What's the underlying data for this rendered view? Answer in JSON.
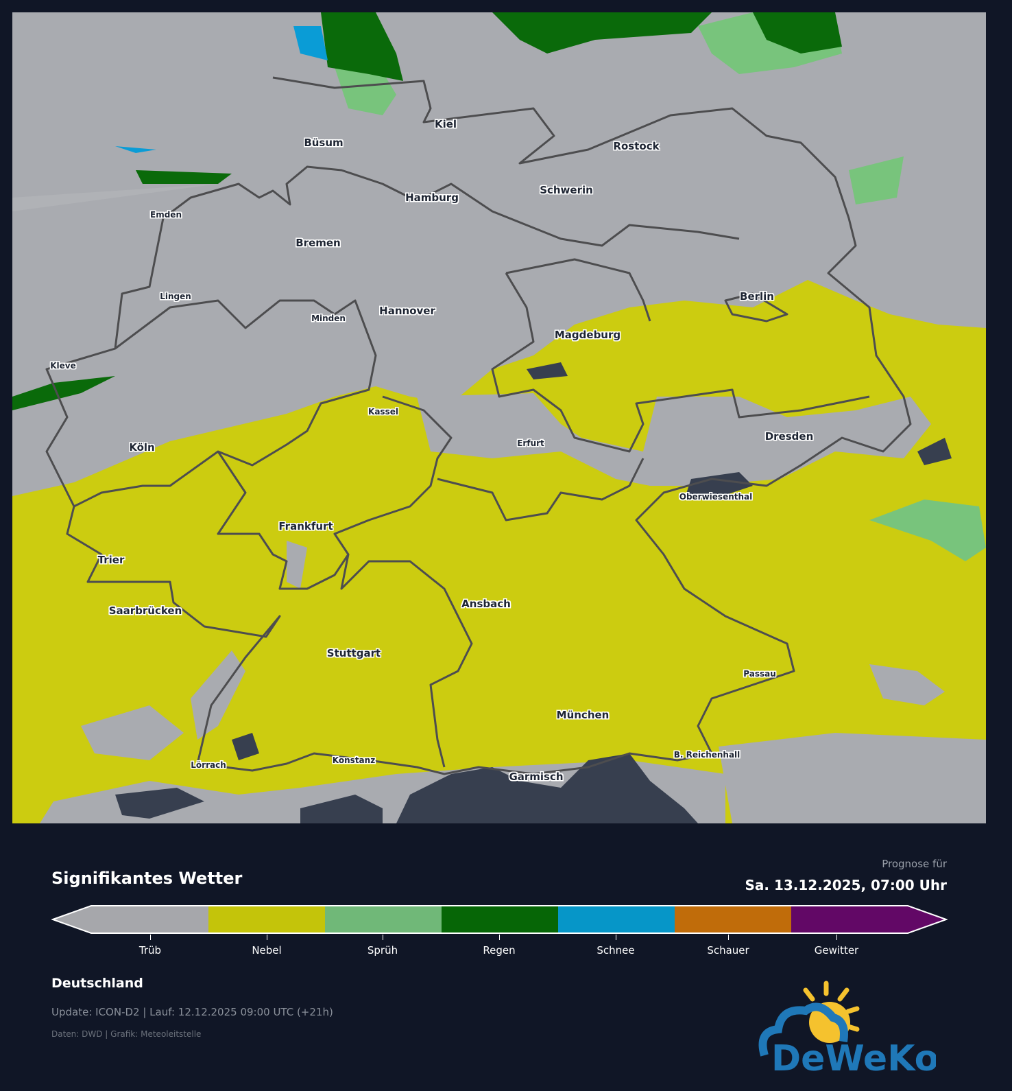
{
  "map": {
    "cities": [
      {
        "name": "Kiel",
        "size": "big"
      },
      {
        "name": "Büsum",
        "size": "big"
      },
      {
        "name": "Rostock",
        "size": "big"
      },
      {
        "name": "Schwerin",
        "size": "big"
      },
      {
        "name": "Hamburg",
        "size": "big"
      },
      {
        "name": "Emden",
        "size": "small"
      },
      {
        "name": "Bremen",
        "size": "big"
      },
      {
        "name": "Berlin",
        "size": "big"
      },
      {
        "name": "Lingen",
        "size": "small"
      },
      {
        "name": "Minden",
        "size": "small"
      },
      {
        "name": "Hannover",
        "size": "big"
      },
      {
        "name": "Magdeburg",
        "size": "big"
      },
      {
        "name": "Kleve",
        "size": "small"
      },
      {
        "name": "Kassel",
        "size": "small"
      },
      {
        "name": "Dresden",
        "size": "big"
      },
      {
        "name": "Erfurt",
        "size": "small"
      },
      {
        "name": "Köln",
        "size": "big"
      },
      {
        "name": "Oberwiesenthal",
        "size": "small"
      },
      {
        "name": "Frankfurt",
        "size": "big"
      },
      {
        "name": "Trier",
        "size": "big"
      },
      {
        "name": "Ansbach",
        "size": "big"
      },
      {
        "name": "Saarbrücken",
        "size": "big"
      },
      {
        "name": "Stuttgart",
        "size": "big"
      },
      {
        "name": "Passau",
        "size": "small"
      },
      {
        "name": "München",
        "size": "big"
      },
      {
        "name": "B. Reichenhall",
        "size": "small"
      },
      {
        "name": "Lörrach",
        "size": "small"
      },
      {
        "name": "Konstanz",
        "size": "small"
      },
      {
        "name": "Garmisch",
        "size": "big"
      }
    ]
  },
  "header": {
    "title": "Signifikantes Wetter",
    "forecast_label": "Prognose für",
    "forecast_date": "Sa. 13.12.2025, 07:00 Uhr"
  },
  "legend": {
    "items": [
      {
        "label": "Trüb",
        "color": "#a6a7ab"
      },
      {
        "label": "Nebel",
        "color": "#c4c40a"
      },
      {
        "label": "Sprüh",
        "color": "#70b878"
      },
      {
        "label": "Regen",
        "color": "#066606"
      },
      {
        "label": "Schnee",
        "color": "#0696c8"
      },
      {
        "label": "Schauer",
        "color": "#c06c0a"
      },
      {
        "label": "Gewitter",
        "color": "#620866"
      }
    ]
  },
  "footer": {
    "region": "Deutschland",
    "update": "Update: ICON-D2 | Lauf: 12.12.2025 09:00 UTC (+21h)",
    "credits": "Daten: DWD | Grafik: Meteoleitstelle",
    "logo_text": "DeWeKo"
  }
}
